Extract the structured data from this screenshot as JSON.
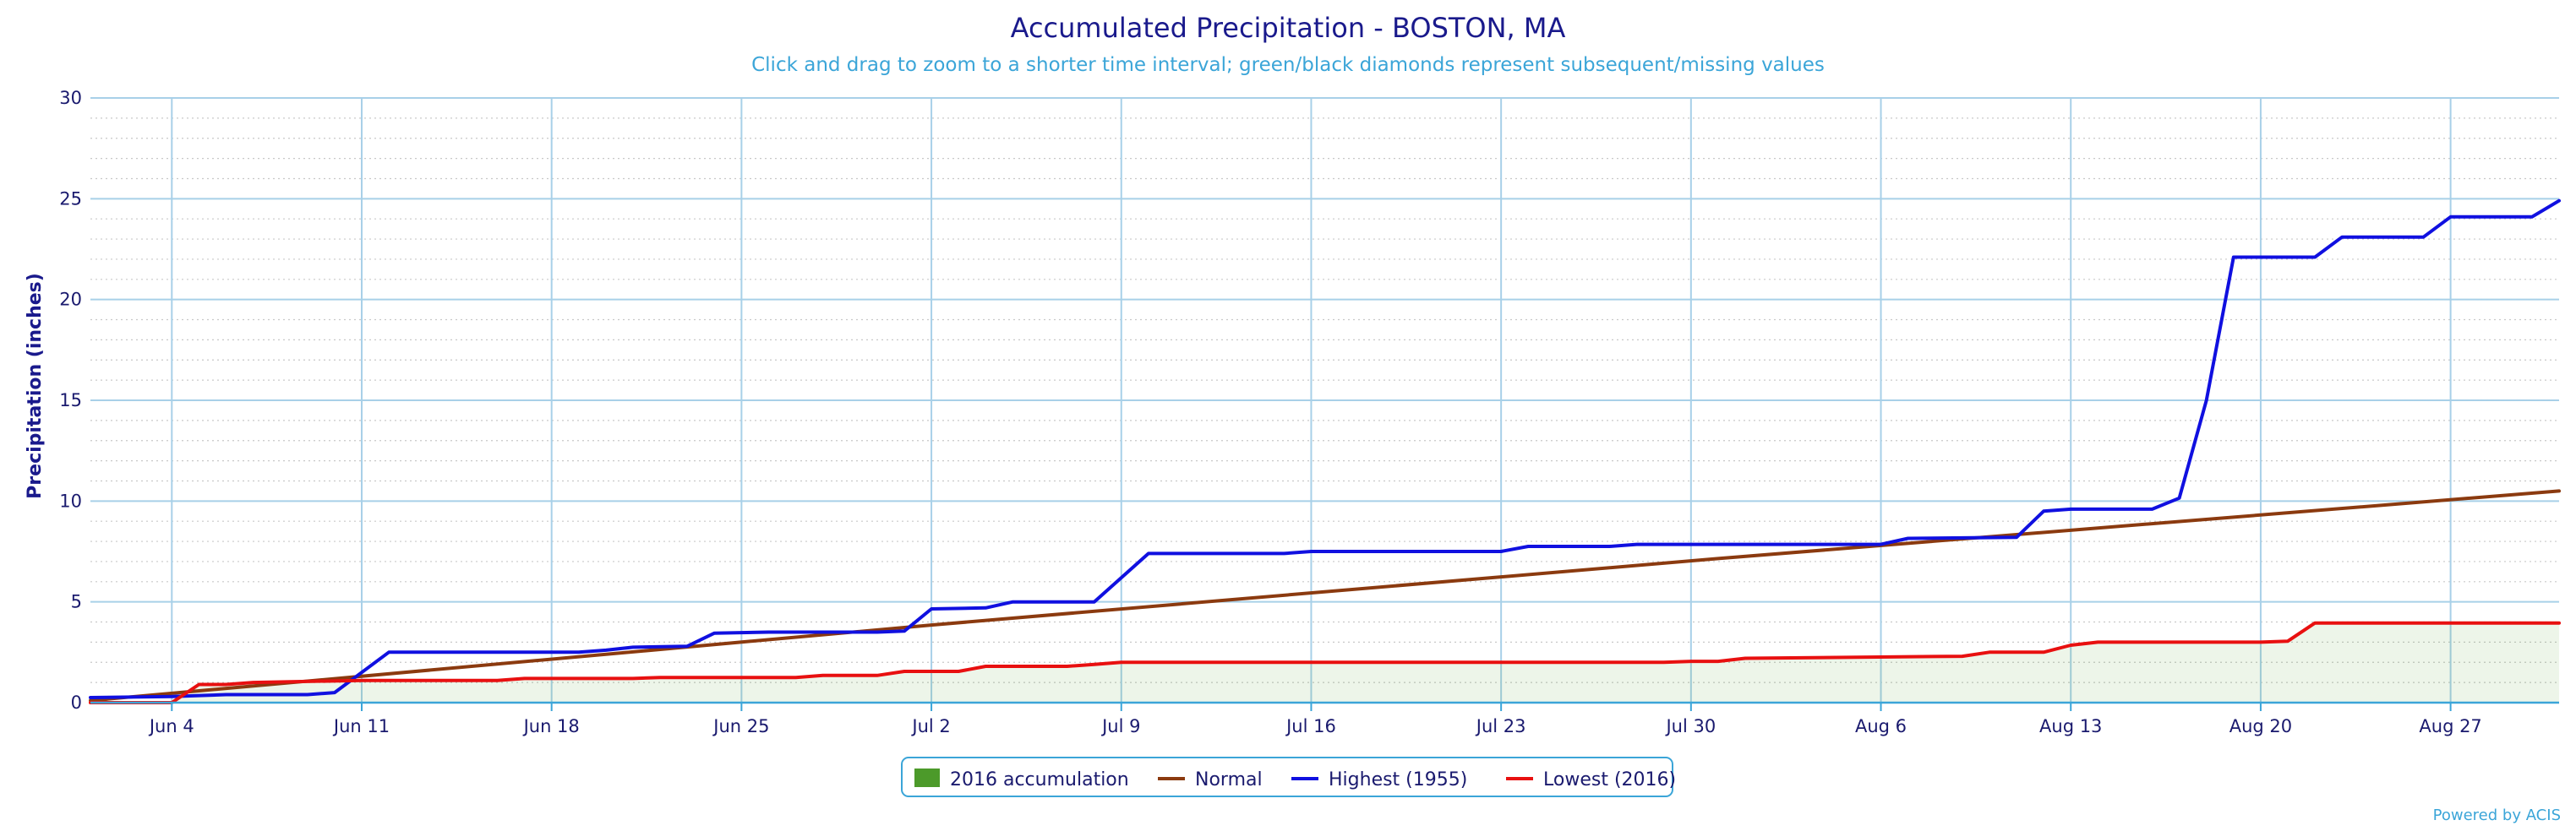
{
  "chart_data": {
    "type": "line",
    "title": "Accumulated Precipitation - BOSTON, MA",
    "subtitle": "Click and drag to zoom to a shorter time interval; green/black diamonds represent subsequent/missing values",
    "ylabel": "Precipitation (inches)",
    "xlabel": "",
    "x_range": [
      "2016-06-01",
      "2016-08-31"
    ],
    "ylim": [
      0,
      30
    ],
    "yticks": [
      0,
      5,
      10,
      15,
      20,
      25,
      30
    ],
    "xticks": [
      {
        "date": "2016-06-04",
        "label": "Jun 4"
      },
      {
        "date": "2016-06-11",
        "label": "Jun 11"
      },
      {
        "date": "2016-06-18",
        "label": "Jun 18"
      },
      {
        "date": "2016-06-25",
        "label": "Jun 25"
      },
      {
        "date": "2016-07-02",
        "label": "Jul 2"
      },
      {
        "date": "2016-07-09",
        "label": "Jul 9"
      },
      {
        "date": "2016-07-16",
        "label": "Jul 16"
      },
      {
        "date": "2016-07-23",
        "label": "Jul 23"
      },
      {
        "date": "2016-07-30",
        "label": "Jul 30"
      },
      {
        "date": "2016-08-06",
        "label": "Aug 6"
      },
      {
        "date": "2016-08-13",
        "label": "Aug 13"
      },
      {
        "date": "2016-08-20",
        "label": "Aug 20"
      },
      {
        "date": "2016-08-27",
        "label": "Aug 27"
      }
    ],
    "grid": true,
    "legend_position": "bottom-center",
    "series": [
      {
        "name": "2016 accumulation",
        "style": "area",
        "color": "#4c9a2a",
        "points": [
          [
            "2016-06-01",
            0.0
          ],
          [
            "2016-06-04",
            0.0
          ],
          [
            "2016-06-05",
            0.9
          ],
          [
            "2016-06-06",
            0.9
          ],
          [
            "2016-06-07",
            1.0
          ],
          [
            "2016-06-11",
            1.1
          ],
          [
            "2016-06-16",
            1.1
          ],
          [
            "2016-06-17",
            1.2
          ],
          [
            "2016-06-21",
            1.2
          ],
          [
            "2016-06-22",
            1.25
          ],
          [
            "2016-06-27",
            1.25
          ],
          [
            "2016-06-28",
            1.35
          ],
          [
            "2016-06-30",
            1.35
          ],
          [
            "2016-07-01",
            1.55
          ],
          [
            "2016-07-03",
            1.55
          ],
          [
            "2016-07-04",
            1.8
          ],
          [
            "2016-07-07",
            1.8
          ],
          [
            "2016-07-08",
            1.9
          ],
          [
            "2016-07-09",
            2.0
          ],
          [
            "2016-07-29",
            2.0
          ],
          [
            "2016-07-30",
            2.05
          ],
          [
            "2016-07-31",
            2.05
          ],
          [
            "2016-08-01",
            2.2
          ],
          [
            "2016-08-09",
            2.3
          ],
          [
            "2016-08-10",
            2.5
          ],
          [
            "2016-08-12",
            2.5
          ],
          [
            "2016-08-13",
            2.85
          ],
          [
            "2016-08-14",
            3.0
          ],
          [
            "2016-08-20",
            3.0
          ],
          [
            "2016-08-21",
            3.05
          ],
          [
            "2016-08-22",
            3.95
          ],
          [
            "2016-08-31",
            3.95
          ]
        ]
      },
      {
        "name": "Normal",
        "style": "line",
        "color": "#8b3a0f",
        "points": [
          [
            "2016-06-01",
            0.1
          ],
          [
            "2016-07-02",
            3.85
          ],
          [
            "2016-07-31",
            7.15
          ],
          [
            "2016-08-31",
            10.5
          ]
        ]
      },
      {
        "name": "Highest (1955)",
        "style": "line",
        "color": "#1010e0",
        "points": [
          [
            "2016-06-01",
            0.25
          ],
          [
            "2016-06-04",
            0.3
          ],
          [
            "2016-06-06",
            0.4
          ],
          [
            "2016-06-09",
            0.4
          ],
          [
            "2016-06-10",
            0.5
          ],
          [
            "2016-06-12",
            2.5
          ],
          [
            "2016-06-19",
            2.5
          ],
          [
            "2016-06-20",
            2.6
          ],
          [
            "2016-06-21",
            2.75
          ],
          [
            "2016-06-23",
            2.8
          ],
          [
            "2016-06-24",
            3.45
          ],
          [
            "2016-06-26",
            3.5
          ],
          [
            "2016-06-30",
            3.5
          ],
          [
            "2016-07-01",
            3.55
          ],
          [
            "2016-07-02",
            4.65
          ],
          [
            "2016-07-04",
            4.7
          ],
          [
            "2016-07-05",
            5.0
          ],
          [
            "2016-07-08",
            5.0
          ],
          [
            "2016-07-10",
            7.4
          ],
          [
            "2016-07-15",
            7.4
          ],
          [
            "2016-07-16",
            7.5
          ],
          [
            "2016-07-23",
            7.5
          ],
          [
            "2016-07-24",
            7.75
          ],
          [
            "2016-07-27",
            7.75
          ],
          [
            "2016-07-28",
            7.85
          ],
          [
            "2016-08-06",
            7.85
          ],
          [
            "2016-08-07",
            8.15
          ],
          [
            "2016-08-11",
            8.2
          ],
          [
            "2016-08-12",
            9.5
          ],
          [
            "2016-08-13",
            9.6
          ],
          [
            "2016-08-16",
            9.6
          ],
          [
            "2016-08-17",
            10.15
          ],
          [
            "2016-08-18",
            15.0
          ],
          [
            "2016-08-19",
            22.1
          ],
          [
            "2016-08-21",
            22.1
          ],
          [
            "2016-08-22",
            22.1
          ],
          [
            "2016-08-23",
            23.1
          ],
          [
            "2016-08-25",
            23.1
          ],
          [
            "2016-08-26",
            23.1
          ],
          [
            "2016-08-27",
            24.1
          ],
          [
            "2016-08-30",
            24.1
          ],
          [
            "2016-08-31",
            24.9
          ]
        ]
      },
      {
        "name": "Lowest (2016)",
        "style": "line",
        "color": "#e81010",
        "points": [
          [
            "2016-06-01",
            0.0
          ],
          [
            "2016-06-04",
            0.0
          ],
          [
            "2016-06-05",
            0.9
          ],
          [
            "2016-06-06",
            0.9
          ],
          [
            "2016-06-07",
            1.0
          ],
          [
            "2016-06-11",
            1.1
          ],
          [
            "2016-06-16",
            1.1
          ],
          [
            "2016-06-17",
            1.2
          ],
          [
            "2016-06-21",
            1.2
          ],
          [
            "2016-06-22",
            1.25
          ],
          [
            "2016-06-27",
            1.25
          ],
          [
            "2016-06-28",
            1.35
          ],
          [
            "2016-06-30",
            1.35
          ],
          [
            "2016-07-01",
            1.55
          ],
          [
            "2016-07-03",
            1.55
          ],
          [
            "2016-07-04",
            1.8
          ],
          [
            "2016-07-07",
            1.8
          ],
          [
            "2016-07-08",
            1.9
          ],
          [
            "2016-07-09",
            2.0
          ],
          [
            "2016-07-29",
            2.0
          ],
          [
            "2016-07-30",
            2.05
          ],
          [
            "2016-07-31",
            2.05
          ],
          [
            "2016-08-01",
            2.2
          ],
          [
            "2016-08-09",
            2.3
          ],
          [
            "2016-08-10",
            2.5
          ],
          [
            "2016-08-12",
            2.5
          ],
          [
            "2016-08-13",
            2.85
          ],
          [
            "2016-08-14",
            3.0
          ],
          [
            "2016-08-20",
            3.0
          ],
          [
            "2016-08-21",
            3.05
          ],
          [
            "2016-08-22",
            3.95
          ],
          [
            "2016-08-31",
            3.95
          ]
        ]
      }
    ],
    "credit": "Powered by ACIS"
  }
}
